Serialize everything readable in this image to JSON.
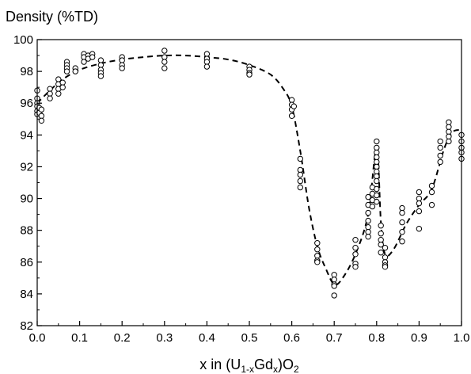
{
  "chart_data": {
    "type": "scatter",
    "ylabel": "Density (%TD)",
    "xlabel_parts": {
      "lead": "x  in  (U",
      "sub1": "1-x",
      "mid": "Gd",
      "sub2": "x",
      "close": ")O",
      "sub3": "2"
    },
    "xlim": [
      0.0,
      1.0
    ],
    "ylim": [
      82,
      100
    ],
    "x_ticks": [
      0.0,
      0.1,
      0.2,
      0.3,
      0.4,
      0.5,
      0.6,
      0.7,
      0.8,
      0.9,
      1.0
    ],
    "x_tick_labels": [
      "0.0",
      "0.1",
      "0.2",
      "0.3",
      "0.4",
      "0.5",
      "0.6",
      "0.7",
      "0.8",
      "0.9",
      "1.0"
    ],
    "y_ticks": [
      82,
      84,
      86,
      88,
      90,
      92,
      94,
      96,
      98,
      100
    ],
    "y_tick_labels": [
      "82",
      "84",
      "86",
      "88",
      "90",
      "92",
      "94",
      "96",
      "98",
      "100"
    ],
    "grid": false,
    "legend": "none",
    "series": [
      {
        "kind": "scatter",
        "marker": "open-circle",
        "color": "#000000",
        "points": [
          [
            0.0,
            96.8
          ],
          [
            0.0,
            96.3
          ],
          [
            0.0,
            96.0
          ],
          [
            0.0,
            95.8
          ],
          [
            0.0,
            95.5
          ],
          [
            0.0,
            95.3
          ],
          [
            0.005,
            95.7
          ],
          [
            0.005,
            95.4
          ],
          [
            0.01,
            95.6
          ],
          [
            0.01,
            95.2
          ],
          [
            0.01,
            94.9
          ],
          [
            0.03,
            96.9
          ],
          [
            0.03,
            96.6
          ],
          [
            0.03,
            96.3
          ],
          [
            0.05,
            97.5
          ],
          [
            0.05,
            97.2
          ],
          [
            0.05,
            96.9
          ],
          [
            0.05,
            96.6
          ],
          [
            0.06,
            97.3
          ],
          [
            0.06,
            97.0
          ],
          [
            0.07,
            98.6
          ],
          [
            0.07,
            98.4
          ],
          [
            0.07,
            98.2
          ],
          [
            0.07,
            98.0
          ],
          [
            0.09,
            98.2
          ],
          [
            0.09,
            98.0
          ],
          [
            0.11,
            99.1
          ],
          [
            0.11,
            98.9
          ],
          [
            0.11,
            98.6
          ],
          [
            0.12,
            99.0
          ],
          [
            0.12,
            98.8
          ],
          [
            0.13,
            99.1
          ],
          [
            0.13,
            98.9
          ],
          [
            0.15,
            98.7
          ],
          [
            0.15,
            98.4
          ],
          [
            0.15,
            98.1
          ],
          [
            0.15,
            97.9
          ],
          [
            0.15,
            97.7
          ],
          [
            0.2,
            98.9
          ],
          [
            0.2,
            98.7
          ],
          [
            0.2,
            98.4
          ],
          [
            0.2,
            98.2
          ],
          [
            0.3,
            99.3
          ],
          [
            0.3,
            98.9
          ],
          [
            0.3,
            98.6
          ],
          [
            0.3,
            98.2
          ],
          [
            0.4,
            99.1
          ],
          [
            0.4,
            98.8
          ],
          [
            0.4,
            98.6
          ],
          [
            0.4,
            98.3
          ],
          [
            0.5,
            98.3
          ],
          [
            0.5,
            98.1
          ],
          [
            0.5,
            97.9
          ],
          [
            0.5,
            97.8
          ],
          [
            0.6,
            96.2
          ],
          [
            0.6,
            95.9
          ],
          [
            0.6,
            95.6
          ],
          [
            0.6,
            95.2
          ],
          [
            0.605,
            95.8
          ],
          [
            0.62,
            92.5
          ],
          [
            0.62,
            91.8
          ],
          [
            0.62,
            91.5
          ],
          [
            0.62,
            91.1
          ],
          [
            0.62,
            90.7
          ],
          [
            0.66,
            87.2
          ],
          [
            0.66,
            86.8
          ],
          [
            0.66,
            86.4
          ],
          [
            0.66,
            86.1
          ],
          [
            0.66,
            86.0
          ],
          [
            0.7,
            85.2
          ],
          [
            0.7,
            84.9
          ],
          [
            0.7,
            84.6
          ],
          [
            0.7,
            84.5
          ],
          [
            0.7,
            83.9
          ],
          [
            0.75,
            87.4
          ],
          [
            0.75,
            86.9
          ],
          [
            0.75,
            86.5
          ],
          [
            0.75,
            85.9
          ],
          [
            0.75,
            85.7
          ],
          [
            0.78,
            90.1
          ],
          [
            0.78,
            89.6
          ],
          [
            0.78,
            89.1
          ],
          [
            0.78,
            88.6
          ],
          [
            0.78,
            88.2
          ],
          [
            0.78,
            87.9
          ],
          [
            0.78,
            87.6
          ],
          [
            0.79,
            90.7
          ],
          [
            0.79,
            90.3
          ],
          [
            0.79,
            89.9
          ],
          [
            0.79,
            89.5
          ],
          [
            0.8,
            93.6
          ],
          [
            0.8,
            93.2
          ],
          [
            0.8,
            92.9
          ],
          [
            0.8,
            92.6
          ],
          [
            0.8,
            92.3
          ],
          [
            0.8,
            92.0
          ],
          [
            0.8,
            91.7
          ],
          [
            0.8,
            91.4
          ],
          [
            0.8,
            91.1
          ],
          [
            0.8,
            90.6
          ],
          [
            0.8,
            90.2
          ],
          [
            0.8,
            89.8
          ],
          [
            0.81,
            88.3
          ],
          [
            0.81,
            87.8
          ],
          [
            0.81,
            87.4
          ],
          [
            0.81,
            87.1
          ],
          [
            0.81,
            86.6
          ],
          [
            0.82,
            86.9
          ],
          [
            0.82,
            86.3
          ],
          [
            0.82,
            86.0
          ],
          [
            0.82,
            85.8
          ],
          [
            0.82,
            85.7
          ],
          [
            0.86,
            89.4
          ],
          [
            0.86,
            89.1
          ],
          [
            0.86,
            88.5
          ],
          [
            0.86,
            87.9
          ],
          [
            0.86,
            87.3
          ],
          [
            0.9,
            90.4
          ],
          [
            0.9,
            90.0
          ],
          [
            0.9,
            89.7
          ],
          [
            0.9,
            89.2
          ],
          [
            0.9,
            88.1
          ],
          [
            0.93,
            90.8
          ],
          [
            0.93,
            90.4
          ],
          [
            0.93,
            89.6
          ],
          [
            0.95,
            93.6
          ],
          [
            0.95,
            93.2
          ],
          [
            0.95,
            92.7
          ],
          [
            0.95,
            92.3
          ],
          [
            0.97,
            94.8
          ],
          [
            0.97,
            94.5
          ],
          [
            0.97,
            94.2
          ],
          [
            0.97,
            93.9
          ],
          [
            0.97,
            93.6
          ],
          [
            1.0,
            94.0
          ],
          [
            1.0,
            93.6
          ],
          [
            1.0,
            93.2
          ],
          [
            1.0,
            92.9
          ],
          [
            1.0,
            92.5
          ]
        ]
      },
      {
        "kind": "line",
        "style": "dashed",
        "color": "#000000",
        "points": [
          [
            0.0,
            96.0
          ],
          [
            0.03,
            96.8
          ],
          [
            0.06,
            97.5
          ],
          [
            0.1,
            98.1
          ],
          [
            0.15,
            98.5
          ],
          [
            0.2,
            98.75
          ],
          [
            0.25,
            98.9
          ],
          [
            0.3,
            99.0
          ],
          [
            0.35,
            99.0
          ],
          [
            0.4,
            98.9
          ],
          [
            0.45,
            98.75
          ],
          [
            0.5,
            98.4
          ],
          [
            0.55,
            97.8
          ],
          [
            0.58,
            96.9
          ],
          [
            0.6,
            95.8
          ],
          [
            0.62,
            93.0
          ],
          [
            0.64,
            89.5
          ],
          [
            0.66,
            87.0
          ],
          [
            0.68,
            85.6
          ],
          [
            0.7,
            84.6
          ],
          [
            0.72,
            85.0
          ],
          [
            0.75,
            86.5
          ],
          [
            0.78,
            89.0
          ],
          [
            0.8,
            93.2
          ],
          [
            0.81,
            88.5
          ],
          [
            0.82,
            86.5
          ],
          [
            0.84,
            86.8
          ],
          [
            0.87,
            88.4
          ],
          [
            0.9,
            89.6
          ],
          [
            0.93,
            90.6
          ],
          [
            0.96,
            93.2
          ],
          [
            0.98,
            94.2
          ],
          [
            1.0,
            94.3
          ]
        ]
      }
    ]
  }
}
